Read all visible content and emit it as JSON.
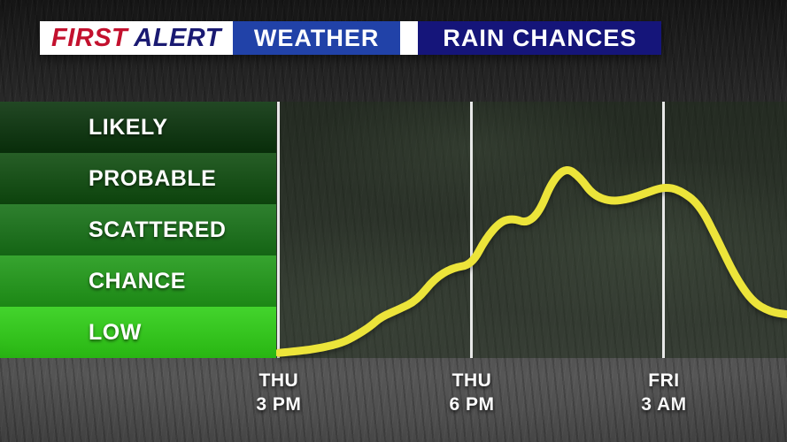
{
  "header": {
    "brand_first": "FIRST",
    "brand_alert": "ALERT",
    "network_label": "WEATHER",
    "title": "RAIN CHANCES",
    "colors": {
      "logo_bg": "#ffffff",
      "first_text": "#c3112e",
      "alert_text": "#1a1a72",
      "weather_bg": "#2142a8",
      "title_bg": "#15157a"
    }
  },
  "chart_data": {
    "type": "line",
    "title": "RAIN CHANCES",
    "x_axis": {
      "ticks": [
        {
          "day": "THU",
          "time": "3 PM",
          "pos": 0.005
        },
        {
          "day": "THU",
          "time": "6 PM",
          "pos": 0.383
        },
        {
          "day": "FRI",
          "time": "3 AM",
          "pos": 0.759
        }
      ]
    },
    "y_axis": {
      "bands_top_to_bottom": [
        {
          "label": "LIKELY",
          "color": "#09330b"
        },
        {
          "label": "PROBABLE",
          "color": "#0e4c0e"
        },
        {
          "label": "SCATTERED",
          "color": "#177217"
        },
        {
          "label": "CHANCE",
          "color": "#209a18"
        },
        {
          "label": "LOW",
          "color": "#2ecf15"
        }
      ],
      "range": [
        0,
        5
      ]
    },
    "grid": {
      "color": "#f2f2f2",
      "vertical_lines": true
    },
    "series": [
      {
        "name": "rain-chance",
        "color": "#ece43a",
        "points": [
          [
            0.005,
            0.1
          ],
          [
            0.05,
            0.14
          ],
          [
            0.09,
            0.2
          ],
          [
            0.13,
            0.3
          ],
          [
            0.155,
            0.43
          ],
          [
            0.185,
            0.62
          ],
          [
            0.205,
            0.8
          ],
          [
            0.24,
            0.95
          ],
          [
            0.275,
            1.12
          ],
          [
            0.31,
            1.55
          ],
          [
            0.345,
            1.76
          ],
          [
            0.383,
            1.82
          ],
          [
            0.41,
            2.33
          ],
          [
            0.44,
            2.67
          ],
          [
            0.465,
            2.72
          ],
          [
            0.49,
            2.63
          ],
          [
            0.515,
            2.84
          ],
          [
            0.54,
            3.45
          ],
          [
            0.568,
            3.72
          ],
          [
            0.595,
            3.52
          ],
          [
            0.62,
            3.18
          ],
          [
            0.655,
            3.05
          ],
          [
            0.69,
            3.1
          ],
          [
            0.725,
            3.22
          ],
          [
            0.759,
            3.34
          ],
          [
            0.79,
            3.28
          ],
          [
            0.828,
            3.0
          ],
          [
            0.863,
            2.33
          ],
          [
            0.898,
            1.6
          ],
          [
            0.932,
            1.1
          ],
          [
            0.967,
            0.9
          ],
          [
            1.0,
            0.85
          ]
        ]
      }
    ]
  }
}
